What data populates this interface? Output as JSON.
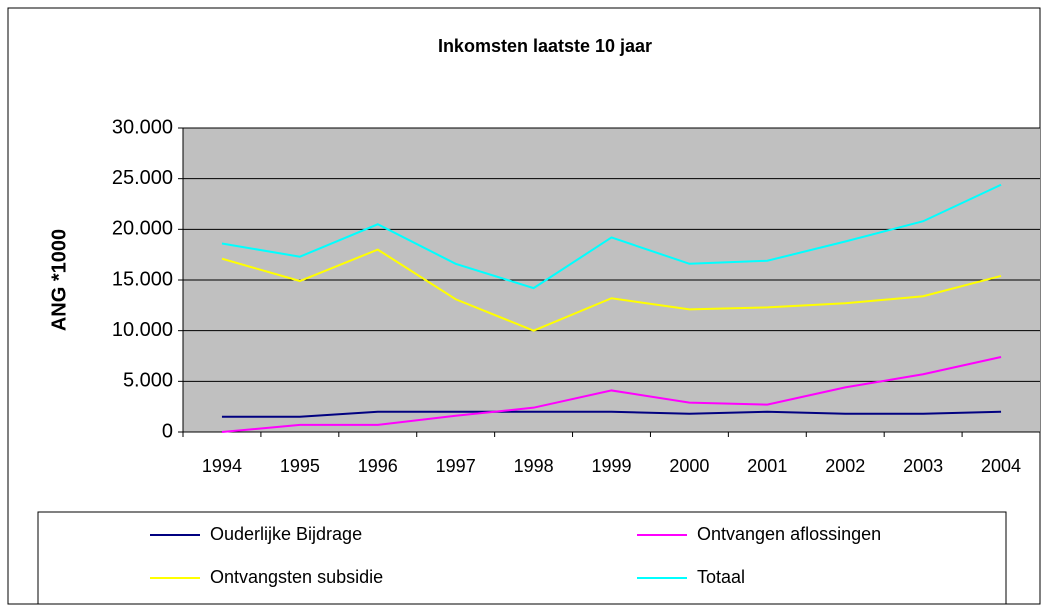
{
  "chart_data": {
    "type": "line",
    "title": "Inkomsten laatste 10 jaar",
    "y_label": "ANG *1000",
    "categories": [
      "1994",
      "1995",
      "1996",
      "1997",
      "1998",
      "1999",
      "2000",
      "2001",
      "2002",
      "2003",
      "2004"
    ],
    "series": [
      {
        "name": "Ouderlijke Bijdrage",
        "color": "#000080",
        "values": [
          1500,
          1500,
          2000,
          2000,
          2000,
          2000,
          1800,
          2000,
          1800,
          1800,
          2000
        ]
      },
      {
        "name": "Ontvangen aflossingen",
        "color": "#ff00ff",
        "values": [
          0,
          700,
          700,
          1600,
          2400,
          4100,
          2900,
          2700,
          4400,
          5700,
          7400
        ]
      },
      {
        "name": "Ontvangsten subsidie",
        "color": "#ffff00",
        "values": [
          17100,
          14900,
          18000,
          13100,
          10000,
          13200,
          12100,
          12300,
          12700,
          13400,
          15400
        ]
      },
      {
        "name": "Totaal",
        "color": "#00ffff",
        "values": [
          18600,
          17300,
          20500,
          16600,
          14200,
          19200,
          16600,
          16900,
          18800,
          20800,
          24400
        ]
      }
    ],
    "ylim": [
      0,
      30000
    ],
    "yticks": [
      0,
      {
        "value": 5000,
        "label": "5.000"
      },
      {
        "value": 10000,
        "label": "10.000"
      },
      {
        "value": 15000,
        "label": "15.000"
      },
      {
        "value": 20000,
        "label": "20.000"
      },
      {
        "value": 25000,
        "label": "25.000"
      },
      {
        "value": 30000,
        "label": "30.000"
      }
    ],
    "grid": true,
    "legend": "bottom",
    "plot_background": "#c0c0c0"
  }
}
